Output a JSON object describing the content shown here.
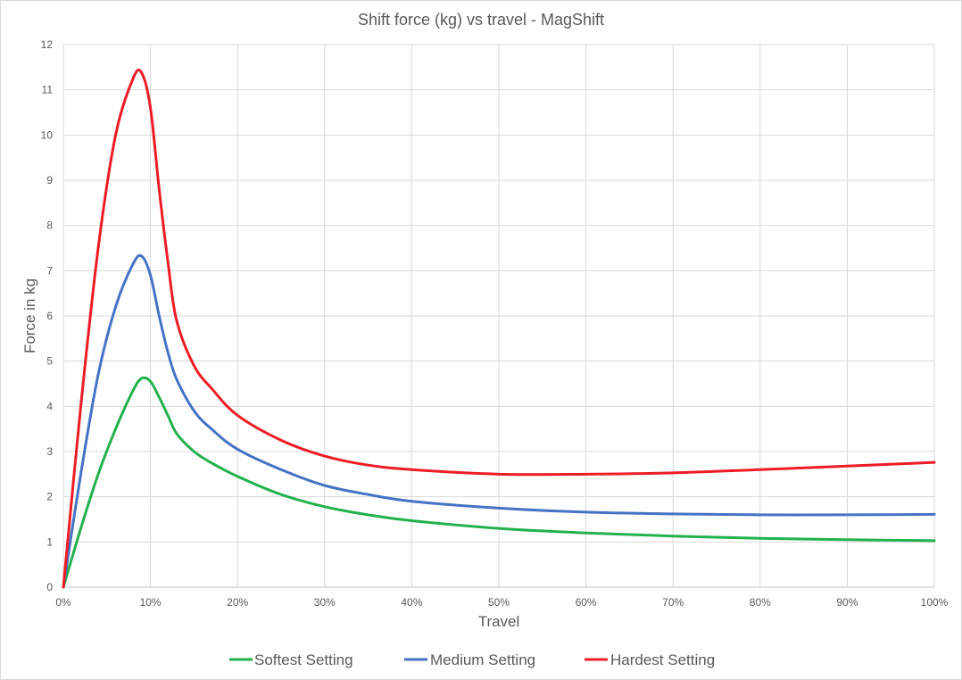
{
  "chart_data": {
    "type": "line",
    "title": "Shift force (kg) vs travel - MagShift",
    "xlabel": "Travel",
    "ylabel": "Force in kg",
    "xlim": [
      0,
      100
    ],
    "ylim": [
      0,
      12
    ],
    "x_ticks": [
      "0%",
      "10%",
      "20%",
      "30%",
      "40%",
      "50%",
      "60%",
      "70%",
      "80%",
      "90%",
      "100%"
    ],
    "y_ticks": [
      "0",
      "1",
      "2",
      "3",
      "4",
      "5",
      "6",
      "7",
      "8",
      "9",
      "10",
      "11",
      "12"
    ],
    "grid": true,
    "legend_position": "bottom",
    "series": [
      {
        "name": "Softest Setting",
        "color": "#22b14c",
        "x": [
          0,
          2,
          4,
          6,
          8,
          9,
          10,
          11,
          12,
          13,
          15,
          17,
          20,
          25,
          30,
          35,
          40,
          50,
          60,
          70,
          80,
          90,
          100
        ],
        "y": [
          0,
          1.3,
          2.5,
          3.5,
          4.35,
          4.62,
          4.55,
          4.2,
          3.8,
          3.4,
          3.0,
          2.75,
          2.45,
          2.05,
          1.78,
          1.6,
          1.47,
          1.3,
          1.2,
          1.13,
          1.08,
          1.05,
          1.03
        ]
      },
      {
        "name": "Medium Setting",
        "color": "#4472c4",
        "x": [
          0,
          2,
          4,
          6,
          8,
          9,
          10,
          11,
          12,
          13,
          15,
          17,
          20,
          25,
          30,
          35,
          40,
          50,
          60,
          70,
          80,
          90,
          100
        ],
        "y": [
          0,
          2.5,
          4.7,
          6.2,
          7.15,
          7.32,
          6.9,
          6.0,
          5.2,
          4.6,
          3.9,
          3.5,
          3.05,
          2.6,
          2.25,
          2.05,
          1.9,
          1.75,
          1.66,
          1.62,
          1.6,
          1.6,
          1.61
        ]
      },
      {
        "name": "Hardest Setting",
        "color": "#ee1c24",
        "x": [
          0,
          2,
          4,
          6,
          8,
          9,
          10,
          11,
          12,
          13,
          15,
          17,
          20,
          25,
          30,
          35,
          40,
          50,
          60,
          70,
          80,
          90,
          100
        ],
        "y": [
          0,
          4.0,
          7.5,
          10.0,
          11.25,
          11.37,
          10.6,
          8.8,
          7.2,
          5.9,
          4.9,
          4.4,
          3.8,
          3.25,
          2.9,
          2.7,
          2.6,
          2.5,
          2.5,
          2.53,
          2.6,
          2.68,
          2.76
        ]
      }
    ]
  }
}
